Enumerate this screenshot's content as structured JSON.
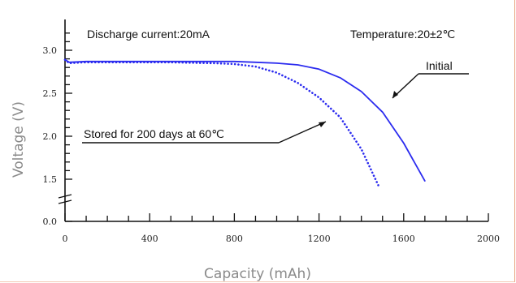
{
  "chart_data": {
    "type": "line",
    "title": "",
    "xlabel": "Capacity (mAh)",
    "ylabel": "Voltage (V)",
    "xlim": [
      0,
      2000
    ],
    "ylim": [
      0.0,
      3.3
    ],
    "x_ticks": [
      "0",
      "400",
      "800",
      "1200",
      "1600",
      "2000"
    ],
    "y_ticks": [
      "0.0",
      "1.5",
      "2.0",
      "2.5",
      "3.0"
    ],
    "y_axis_break": true,
    "grid": false,
    "annotations": {
      "discharge": "Discharge current:20mA",
      "temperature": "Temperature:20±2℃"
    },
    "series": [
      {
        "name": "Initial",
        "style": "solid",
        "color": "#2b2bef",
        "x": [
          0,
          20,
          100,
          300,
          500,
          700,
          800,
          900,
          1000,
          1100,
          1200,
          1300,
          1400,
          1500,
          1600,
          1700
        ],
        "y": [
          2.89,
          2.86,
          2.87,
          2.87,
          2.87,
          2.87,
          2.87,
          2.86,
          2.85,
          2.83,
          2.78,
          2.68,
          2.52,
          2.28,
          1.92,
          1.48
        ]
      },
      {
        "name": "Stored for 200 days at 60℃",
        "style": "dotted",
        "color": "#2b2bef",
        "x": [
          0,
          20,
          100,
          300,
          500,
          700,
          800,
          900,
          1000,
          1100,
          1200,
          1300,
          1400,
          1480
        ],
        "y": [
          2.89,
          2.85,
          2.86,
          2.86,
          2.86,
          2.85,
          2.84,
          2.81,
          2.74,
          2.62,
          2.45,
          2.22,
          1.85,
          1.43
        ]
      }
    ]
  }
}
